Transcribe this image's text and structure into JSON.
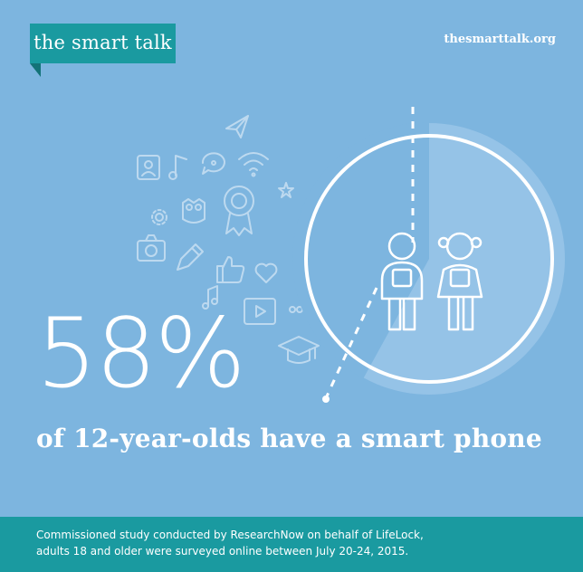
{
  "brand": {
    "logo_text": "the smart talk",
    "url": "thesmarttalk.org"
  },
  "statistic": {
    "value": "58%",
    "caption": "of 12-year-olds have a smart phone",
    "fraction": 0.58
  },
  "footnote": {
    "line1": "Commissioned study conducted by ResearchNow on behalf of LifeLock,",
    "line2": "adults 18 and older were surveyed online between July 20-24, 2015."
  },
  "colors": {
    "background": "#7db5df",
    "brand_teal": "#1a9aa0",
    "text": "#ffffff"
  },
  "icons": [
    "paper-plane-icon",
    "contact-icon",
    "music-note-icon",
    "chat-bubble-icon",
    "wifi-icon",
    "award-ribbon-icon",
    "owl-icon",
    "camera-icon",
    "pencil-icon",
    "thumbs-up-icon",
    "heart-icon",
    "video-icon",
    "graduation-cap-icon",
    "gear-icon",
    "star-icon"
  ]
}
